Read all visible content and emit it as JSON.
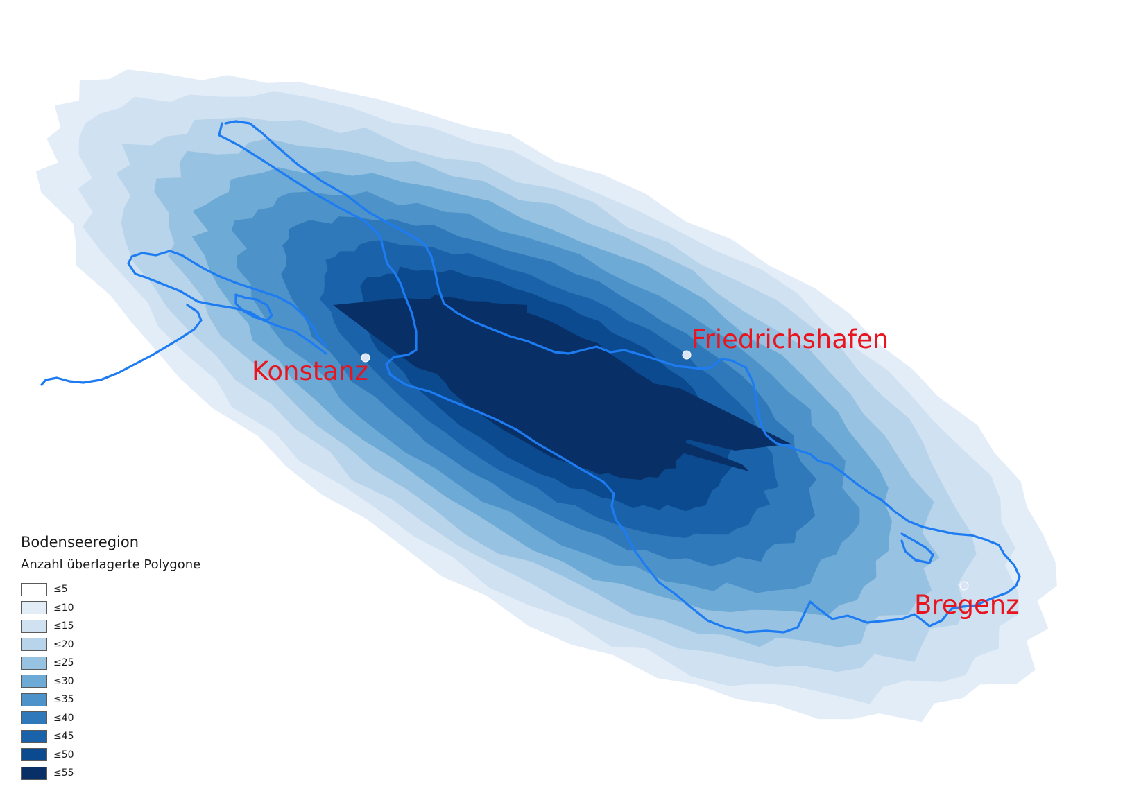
{
  "legend": {
    "title": "Bodenseeregion",
    "subtitle": "Anzahl überlagerte Polygone",
    "classes": [
      {
        "label": "≤5",
        "max": 5,
        "color": "#ffffff"
      },
      {
        "label": "≤10",
        "max": 10,
        "color": "#e3edf8"
      },
      {
        "label": "≤15",
        "max": 15,
        "color": "#d0e1f2"
      },
      {
        "label": "≤20",
        "max": 20,
        "color": "#b8d4ea"
      },
      {
        "label": "≤25",
        "max": 25,
        "color": "#98c2e2"
      },
      {
        "label": "≤30",
        "max": 30,
        "color": "#6eaad6"
      },
      {
        "label": "≤35",
        "max": 35,
        "color": "#4d93c9"
      },
      {
        "label": "≤40",
        "max": 40,
        "color": "#2f78b9"
      },
      {
        "label": "≤45",
        "max": 45,
        "color": "#1a62aa"
      },
      {
        "label": "≤50",
        "max": 50,
        "color": "#0b4a8f"
      },
      {
        "label": "≤55",
        "max": 55,
        "color": "#082f66"
      }
    ]
  },
  "cities": [
    {
      "id": "konstanz",
      "name": "Konstanz"
    },
    {
      "id": "friedrichshafen",
      "name": "Friedrichshafen"
    },
    {
      "id": "bregenz",
      "name": "Bregenz"
    }
  ],
  "colors": {
    "city_label": "#e8141e",
    "city_dot": "#dbe4f5",
    "shoreline": "#1e7cf2"
  },
  "icons": {
    "city_marker": "circle-dot-icon"
  }
}
